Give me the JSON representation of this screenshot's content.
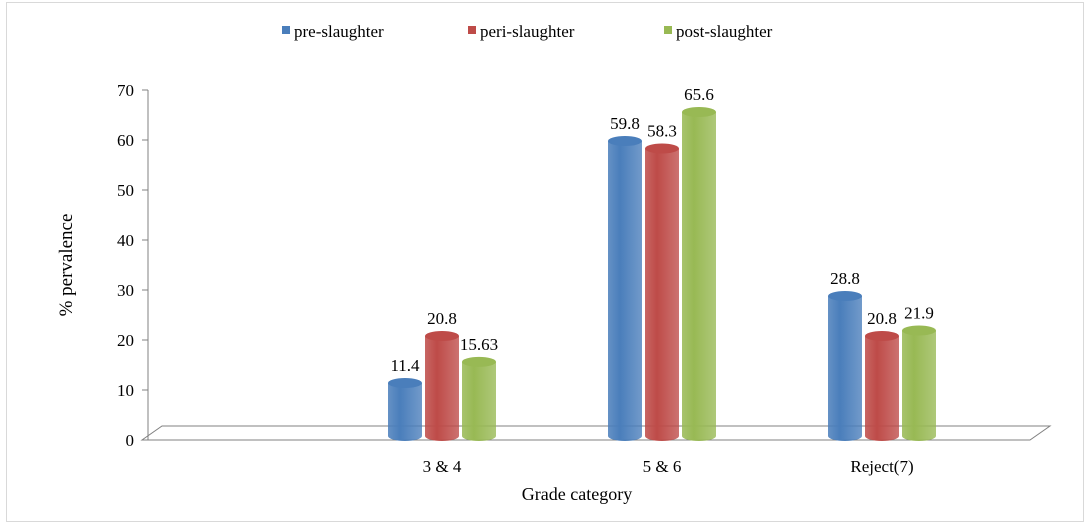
{
  "chart_data": {
    "type": "bar",
    "categories": [
      "",
      "3 & 4",
      "5 & 6",
      "Reject(7)"
    ],
    "series": [
      {
        "name": "pre-slaughter",
        "values": [
          null,
          11.4,
          59.8,
          28.8
        ],
        "labels": [
          "",
          "11.4",
          "59.8",
          "28.8"
        ]
      },
      {
        "name": "peri-slaughter",
        "values": [
          null,
          20.8,
          58.3,
          20.8
        ],
        "labels": [
          "",
          "20.8",
          "58.3",
          "20.8"
        ]
      },
      {
        "name": "post-slaughter",
        "values": [
          null,
          15.63,
          65.6,
          21.9
        ],
        "labels": [
          "",
          "15.63",
          "65.6",
          "21.9"
        ]
      }
    ],
    "xlabel": "Grade category",
    "ylabel": "% pervalence",
    "ylim": [
      0,
      70
    ],
    "yticks": [
      "0",
      "10",
      "20",
      "30",
      "40",
      "50",
      "60",
      "70"
    ],
    "grid": false,
    "legend_position": "top",
    "colors": [
      "#4a7ebb",
      "#be4b48",
      "#98b954"
    ]
  }
}
